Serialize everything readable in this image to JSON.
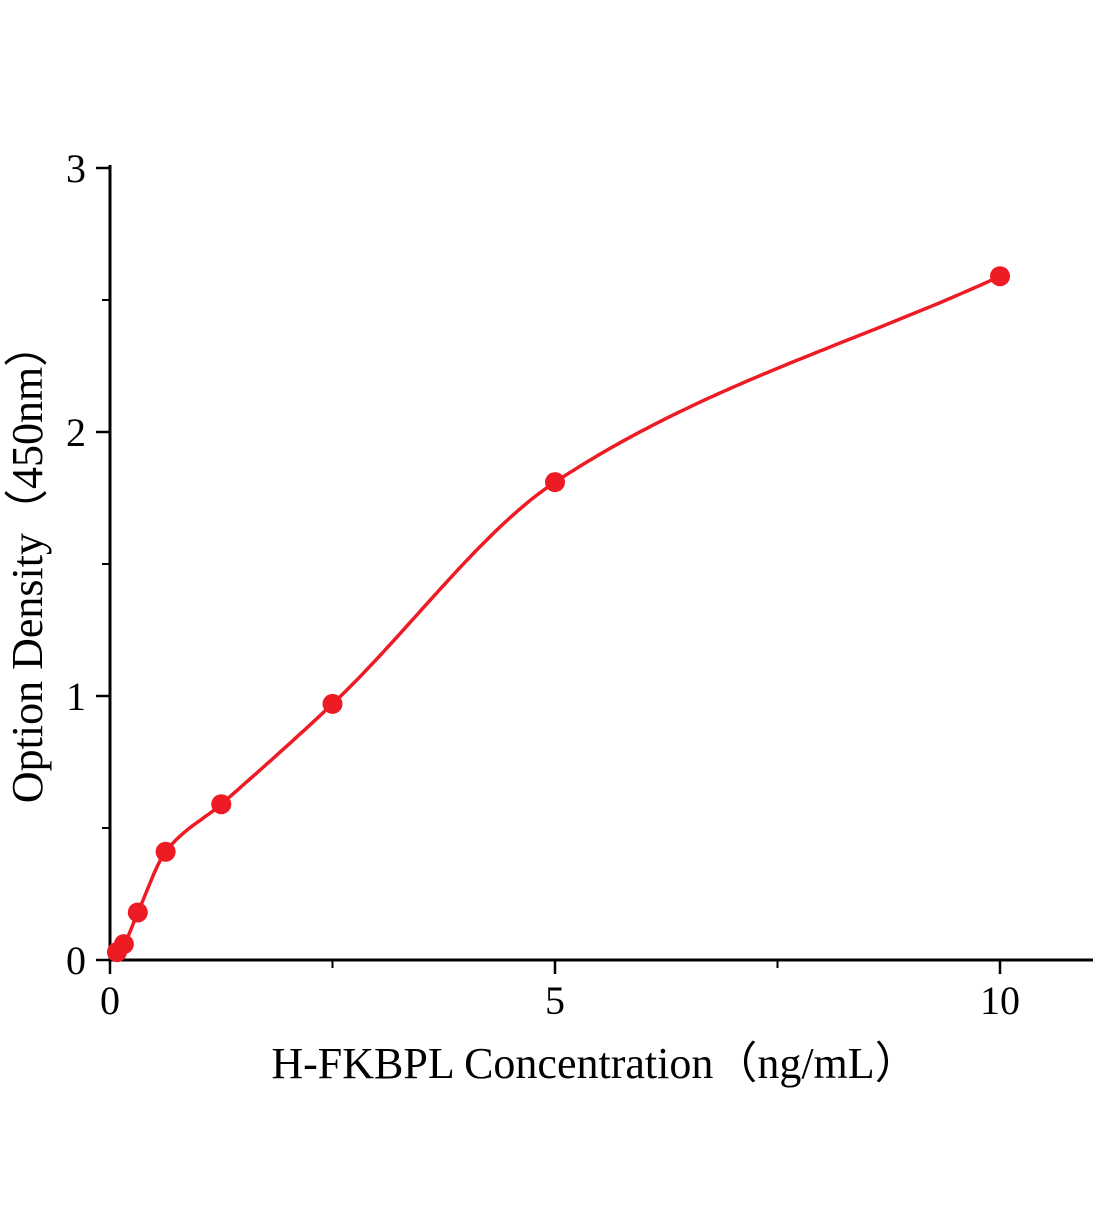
{
  "chart_data": {
    "type": "scatter",
    "title": "",
    "xlabel": "H-FKBPL Concentration（ng/mL）",
    "ylabel": "Option Density（450nm）",
    "x": [
      0.078,
      0.156,
      0.3125,
      0.625,
      1.25,
      2.5,
      5,
      10
    ],
    "y": [
      0.03,
      0.06,
      0.18,
      0.41,
      0.59,
      0.97,
      1.81,
      2.59
    ],
    "fit_curve": "smooth monotone curve through all data points",
    "xlim": [
      0,
      11.05
    ],
    "ylim": [
      0,
      3
    ],
    "x_major_ticks": [
      0,
      5,
      10
    ],
    "x_minor_ticks": [
      2.5,
      7.5
    ],
    "y_major_ticks": [
      0,
      1,
      2,
      3
    ],
    "y_minor_ticks": [
      0.5,
      1.5,
      2.5
    ],
    "grid": false,
    "legend": null,
    "point_color": "#ed1c24",
    "line_color": "#ed1c24",
    "axis_color": "#000000",
    "background_color": "#ffffff"
  }
}
